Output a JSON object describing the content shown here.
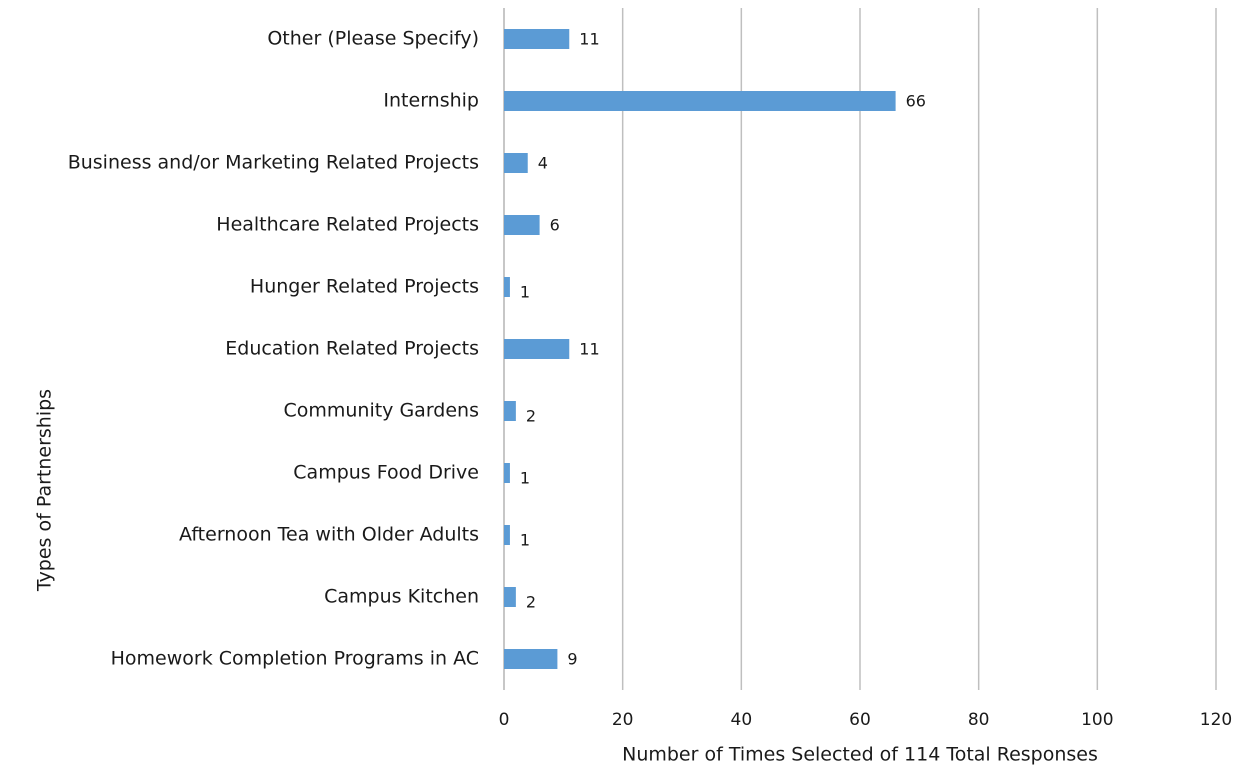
{
  "chart_data": {
    "type": "bar",
    "orientation": "horizontal",
    "x_label": "Number of Times Selected of 114 Total Responses",
    "y_label": "Types of Partnerships",
    "categories": [
      "Other (Please Specify)",
      "Internship",
      "Business and/or Marketing Related Projects",
      "Healthcare Related Projects",
      "Hunger Related Projects",
      "Education Related Projects",
      "Community Gardens",
      "Campus Food Drive",
      "Afternoon Tea with Older Adults",
      "Campus Kitchen",
      "Homework Completion Programs in AC"
    ],
    "values": [
      11,
      66,
      4,
      6,
      1,
      11,
      2,
      1,
      1,
      2,
      9
    ],
    "color": "#5b9bd5",
    "xlim": [
      0,
      120
    ],
    "xticks": [
      0,
      20,
      40,
      60,
      80,
      100,
      120
    ],
    "grid": true
  }
}
